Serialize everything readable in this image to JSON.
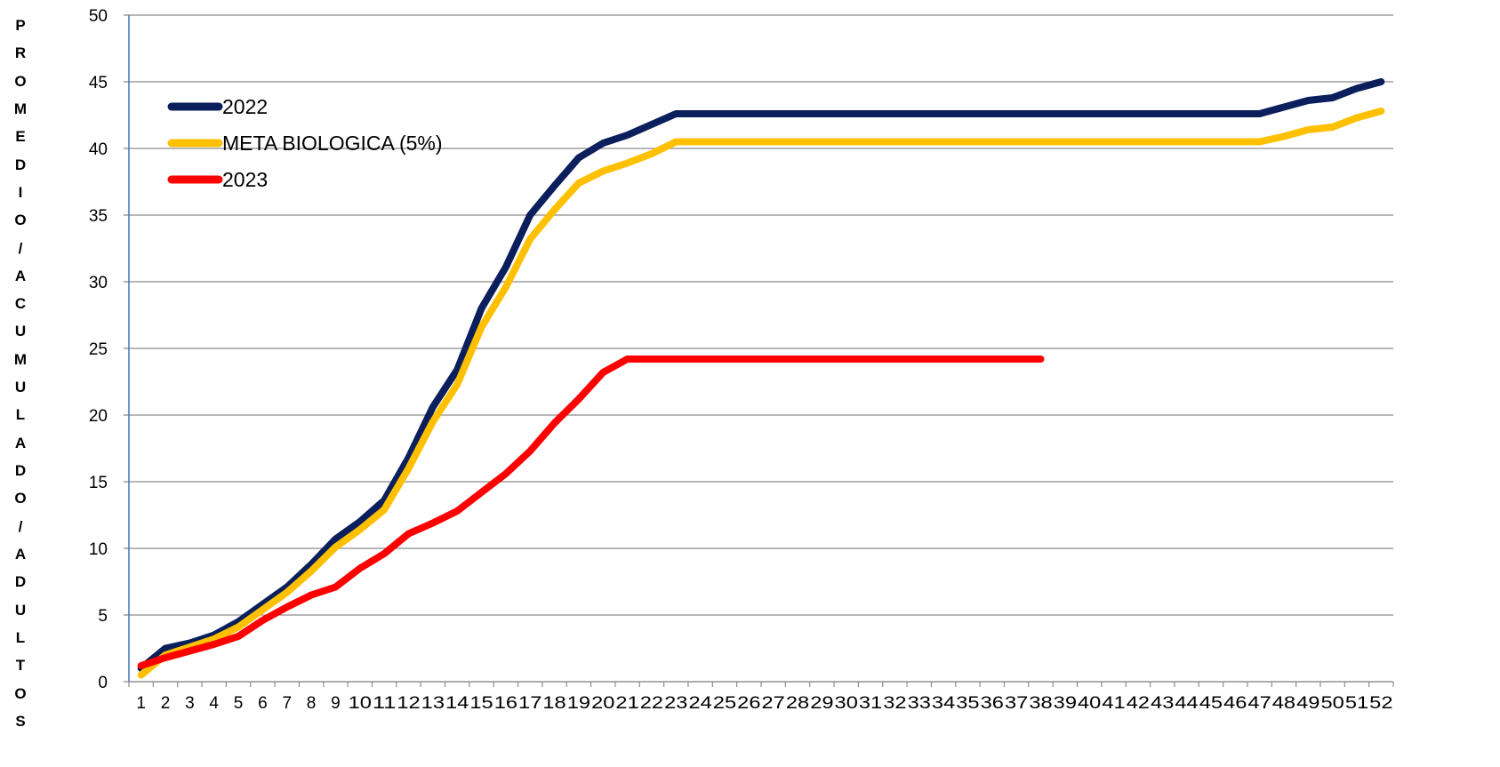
{
  "chart_data": {
    "type": "line",
    "title": "",
    "xlabel": "",
    "ylabel": "PROMEDIO/ACUMULADO/ADULTOS",
    "ylim": [
      0,
      50
    ],
    "yticks": [
      0,
      5,
      10,
      15,
      20,
      25,
      30,
      35,
      40,
      45,
      50
    ],
    "x": [
      1,
      2,
      3,
      4,
      5,
      6,
      7,
      8,
      9,
      10,
      11,
      12,
      13,
      14,
      15,
      16,
      17,
      18,
      19,
      20,
      21,
      22,
      23,
      24,
      25,
      26,
      27,
      28,
      29,
      30,
      31,
      32,
      33,
      34,
      35,
      36,
      37,
      38,
      39,
      40,
      41,
      42,
      43,
      44,
      45,
      46,
      47,
      48,
      49,
      50,
      51,
      52
    ],
    "grid": true,
    "legend_position": "top-left",
    "series": [
      {
        "name": "2022",
        "color": "#0a1f5c",
        "values": [
          1.0,
          2.5,
          2.9,
          3.5,
          4.5,
          5.8,
          7.1,
          8.8,
          10.7,
          12.0,
          13.6,
          16.8,
          20.6,
          23.4,
          28.0,
          31.1,
          35.0,
          37.2,
          39.3,
          40.4,
          41.0,
          41.8,
          42.6,
          42.6,
          42.6,
          42.6,
          42.6,
          42.6,
          42.6,
          42.6,
          42.6,
          42.6,
          42.6,
          42.6,
          42.6,
          42.6,
          42.6,
          42.6,
          42.6,
          42.6,
          42.6,
          42.6,
          42.6,
          42.6,
          42.6,
          42.6,
          42.6,
          43.1,
          43.6,
          43.8,
          44.5,
          45.0
        ]
      },
      {
        "name": "META BIOLOGICA (5%)",
        "color": "#ffc000",
        "values": [
          0.5,
          2.0,
          2.6,
          3.2,
          4.1,
          5.4,
          6.7,
          8.3,
          10.1,
          11.4,
          12.9,
          16.0,
          19.5,
          22.3,
          26.6,
          29.6,
          33.2,
          35.4,
          37.4,
          38.3,
          38.9,
          39.6,
          40.5,
          40.5,
          40.5,
          40.5,
          40.5,
          40.5,
          40.5,
          40.5,
          40.5,
          40.5,
          40.5,
          40.5,
          40.5,
          40.5,
          40.5,
          40.5,
          40.5,
          40.5,
          40.5,
          40.5,
          40.5,
          40.5,
          40.5,
          40.5,
          40.5,
          40.9,
          41.4,
          41.6,
          42.3,
          42.8
        ]
      },
      {
        "name": "2023",
        "color": "#ff0000",
        "values": [
          1.2,
          1.8,
          2.3,
          2.8,
          3.4,
          4.6,
          5.6,
          6.5,
          7.1,
          8.5,
          9.6,
          11.1,
          11.9,
          12.8,
          14.2,
          15.6,
          17.3,
          19.4,
          21.2,
          23.2,
          24.2,
          24.2,
          24.2,
          24.2,
          24.2,
          24.2,
          24.2,
          24.2,
          24.2,
          24.2,
          24.2,
          24.2,
          24.2,
          24.2,
          24.2,
          24.2,
          24.2,
          24.2,
          null,
          null,
          null,
          null,
          null,
          null,
          null,
          null,
          null,
          null,
          null,
          null,
          null,
          null
        ]
      }
    ]
  }
}
